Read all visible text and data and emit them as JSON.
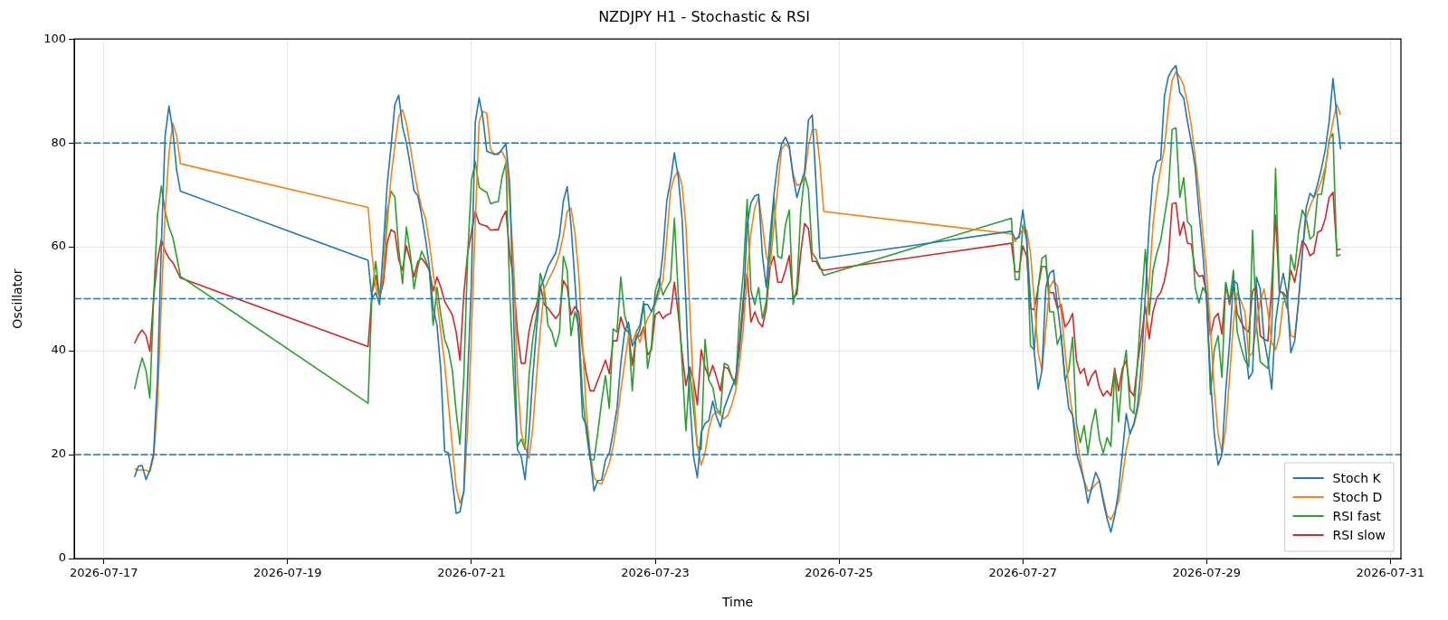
{
  "chart_data": {
    "type": "line",
    "title": "NZDJPY H1 - Stochastic & RSI",
    "xlabel": "Time",
    "ylabel": "Oscillator",
    "x": [
      "2026-07-17T08:00",
      "2026-07-17T09:00",
      "2026-07-17T10:00",
      "2026-07-17T11:00",
      "2026-07-17T12:00",
      "2026-07-17T13:00",
      "2026-07-17T14:00",
      "2026-07-17T15:00",
      "2026-07-17T16:00",
      "2026-07-17T17:00",
      "2026-07-17T18:00",
      "2026-07-17T19:00",
      "2026-07-17T20:00",
      "2026-07-19T21:00",
      "2026-07-19T22:00",
      "2026-07-19T23:00",
      "2026-07-20T00:00",
      "2026-07-20T01:00",
      "2026-07-20T02:00",
      "2026-07-20T03:00",
      "2026-07-20T04:00",
      "2026-07-20T05:00",
      "2026-07-20T06:00",
      "2026-07-20T07:00",
      "2026-07-20T08:00",
      "2026-07-20T09:00",
      "2026-07-20T10:00",
      "2026-07-20T11:00",
      "2026-07-20T12:00",
      "2026-07-20T13:00",
      "2026-07-20T14:00",
      "2026-07-20T15:00",
      "2026-07-20T16:00",
      "2026-07-20T17:00",
      "2026-07-20T18:00",
      "2026-07-20T19:00",
      "2026-07-20T20:00",
      "2026-07-20T21:00",
      "2026-07-20T22:00",
      "2026-07-20T23:00",
      "2026-07-21T00:00",
      "2026-07-21T01:00",
      "2026-07-21T02:00",
      "2026-07-21T03:00",
      "2026-07-21T04:00",
      "2026-07-21T05:00",
      "2026-07-21T06:00",
      "2026-07-21T07:00",
      "2026-07-21T08:00",
      "2026-07-21T09:00",
      "2026-07-21T10:00",
      "2026-07-21T11:00",
      "2026-07-21T12:00",
      "2026-07-21T13:00",
      "2026-07-21T14:00",
      "2026-07-21T15:00",
      "2026-07-21T16:00",
      "2026-07-21T17:00",
      "2026-07-21T18:00",
      "2026-07-21T19:00",
      "2026-07-21T20:00",
      "2026-07-21T21:00",
      "2026-07-21T22:00",
      "2026-07-21T23:00",
      "2026-07-22T00:00",
      "2026-07-22T01:00",
      "2026-07-22T02:00",
      "2026-07-22T03:00",
      "2026-07-22T04:00",
      "2026-07-22T05:00",
      "2026-07-22T06:00",
      "2026-07-22T07:00",
      "2026-07-22T08:00",
      "2026-07-22T09:00",
      "2026-07-22T10:00",
      "2026-07-22T11:00",
      "2026-07-22T12:00",
      "2026-07-22T13:00",
      "2026-07-22T14:00",
      "2026-07-22T15:00",
      "2026-07-22T16:00",
      "2026-07-22T17:00",
      "2026-07-22T18:00",
      "2026-07-22T19:00",
      "2026-07-22T20:00",
      "2026-07-22T21:00",
      "2026-07-22T22:00",
      "2026-07-22T23:00",
      "2026-07-23T00:00",
      "2026-07-23T01:00",
      "2026-07-23T02:00",
      "2026-07-23T03:00",
      "2026-07-23T04:00",
      "2026-07-23T05:00",
      "2026-07-23T06:00",
      "2026-07-23T07:00",
      "2026-07-23T08:00",
      "2026-07-23T09:00",
      "2026-07-23T10:00",
      "2026-07-23T11:00",
      "2026-07-23T12:00",
      "2026-07-23T13:00",
      "2026-07-23T14:00",
      "2026-07-23T15:00",
      "2026-07-23T16:00",
      "2026-07-23T17:00",
      "2026-07-23T18:00",
      "2026-07-23T19:00",
      "2026-07-23T20:00",
      "2026-07-23T21:00",
      "2026-07-23T22:00",
      "2026-07-23T23:00",
      "2026-07-24T00:00",
      "2026-07-24T01:00",
      "2026-07-24T02:00",
      "2026-07-24T03:00",
      "2026-07-24T04:00",
      "2026-07-24T05:00",
      "2026-07-24T06:00",
      "2026-07-24T07:00",
      "2026-07-24T08:00",
      "2026-07-24T09:00",
      "2026-07-24T10:00",
      "2026-07-24T11:00",
      "2026-07-24T12:00",
      "2026-07-24T13:00",
      "2026-07-24T14:00",
      "2026-07-24T15:00",
      "2026-07-24T16:00",
      "2026-07-24T17:00",
      "2026-07-24T18:00",
      "2026-07-24T19:00",
      "2026-07-24T20:00",
      "2026-07-26T21:00",
      "2026-07-26T22:00",
      "2026-07-26T23:00",
      "2026-07-27T00:00",
      "2026-07-27T01:00",
      "2026-07-27T02:00",
      "2026-07-27T03:00",
      "2026-07-27T04:00",
      "2026-07-27T05:00",
      "2026-07-27T06:00",
      "2026-07-27T07:00",
      "2026-07-27T08:00",
      "2026-07-27T09:00",
      "2026-07-27T10:00",
      "2026-07-27T11:00",
      "2026-07-27T12:00",
      "2026-07-27T13:00",
      "2026-07-27T14:00",
      "2026-07-27T15:00",
      "2026-07-27T16:00",
      "2026-07-27T17:00",
      "2026-07-27T18:00",
      "2026-07-27T19:00",
      "2026-07-27T20:00",
      "2026-07-27T21:00",
      "2026-07-27T22:00",
      "2026-07-27T23:00",
      "2026-07-28T00:00",
      "2026-07-28T01:00",
      "2026-07-28T02:00",
      "2026-07-28T03:00",
      "2026-07-28T04:00",
      "2026-07-28T05:00",
      "2026-07-28T06:00",
      "2026-07-28T07:00",
      "2026-07-28T08:00",
      "2026-07-28T09:00",
      "2026-07-28T10:00",
      "2026-07-28T11:00",
      "2026-07-28T12:00",
      "2026-07-28T13:00",
      "2026-07-28T14:00",
      "2026-07-28T15:00",
      "2026-07-28T16:00",
      "2026-07-28T17:00",
      "2026-07-28T18:00",
      "2026-07-28T19:00",
      "2026-07-28T20:00",
      "2026-07-28T21:00",
      "2026-07-28T22:00",
      "2026-07-28T23:00",
      "2026-07-29T00:00",
      "2026-07-29T01:00",
      "2026-07-29T02:00",
      "2026-07-29T03:00",
      "2026-07-29T04:00",
      "2026-07-29T05:00",
      "2026-07-29T06:00",
      "2026-07-29T07:00",
      "2026-07-29T08:00",
      "2026-07-29T09:00",
      "2026-07-29T10:00",
      "2026-07-29T11:00",
      "2026-07-29T12:00",
      "2026-07-29T13:00",
      "2026-07-29T14:00",
      "2026-07-29T15:00",
      "2026-07-29T16:00",
      "2026-07-29T17:00",
      "2026-07-29T18:00",
      "2026-07-29T19:00",
      "2026-07-29T20:00",
      "2026-07-29T21:00",
      "2026-07-29T22:00",
      "2026-07-29T23:00",
      "2026-07-30T00:00",
      "2026-07-30T01:00",
      "2026-07-30T02:00",
      "2026-07-30T03:00",
      "2026-07-30T04:00",
      "2026-07-30T05:00",
      "2026-07-30T06:00",
      "2026-07-30T07:00",
      "2026-07-30T08:00",
      "2026-07-30T09:00",
      "2026-07-30T10:00",
      "2026-07-30T11:00"
    ],
    "series": [
      {
        "name": "Stoch K",
        "color": "#1f77b4",
        "values": [
          15.7,
          17.8,
          17.9,
          15.2,
          17,
          20.3,
          34.9,
          60.2,
          81.4,
          87.1,
          82.4,
          74.8,
          70.7,
          57.4,
          50,
          51.2,
          48.9,
          60.2,
          72.1,
          79.4,
          87.4,
          89.2,
          83.1,
          80.1,
          75.8,
          70.8,
          69.8,
          66.1,
          61.5,
          56.2,
          48.2,
          44.9,
          36.2,
          20.6,
          20.3,
          15,
          8.7,
          9,
          13,
          34.9,
          53.5,
          84,
          88.7,
          84.8,
          78.4,
          78.1,
          77.8,
          77.8,
          78.8,
          79.8,
          72.1,
          46.9,
          21,
          19.6,
          15.2,
          23.6,
          34.9,
          44.2,
          52.2,
          53.9,
          56.2,
          57.5,
          58.8,
          62.2,
          68.8,
          71.6,
          64.2,
          53.5,
          42.9,
          27.3,
          25.6,
          19.6,
          13,
          15,
          15.1,
          19,
          20.3,
          24.3,
          28.9,
          37.6,
          43.6,
          45.5,
          40.9,
          42.2,
          44.2,
          48.9,
          48.9,
          47.5,
          49.5,
          52.2,
          58.8,
          68.8,
          72.8,
          78.1,
          73.5,
          65.5,
          49.5,
          30.9,
          19.6,
          15.6,
          24.3,
          26,
          26.6,
          30.3,
          27.3,
          25.3,
          28.9,
          30.9,
          32.9,
          34.9,
          40.2,
          48.2,
          64.2,
          68.5,
          69.8,
          70.1,
          58.2,
          52.2,
          62.2,
          70.1,
          76.1,
          79.8,
          81.1,
          79.4,
          73.5,
          69.5,
          72.1,
          74.5,
          84.4,
          85.4,
          72.1,
          57.8,
          57.8,
          63,
          61.5,
          61.8,
          67.1,
          61.5,
          49.5,
          39.6,
          32.6,
          36.2,
          52.2,
          54.9,
          55.5,
          48.9,
          42.9,
          34.9,
          28.9,
          27.6,
          20.3,
          17.6,
          15,
          10.7,
          13.7,
          16.6,
          15,
          11,
          7.7,
          5.1,
          8.3,
          13,
          20.3,
          27.9,
          24,
          26,
          29.6,
          37.6,
          50.9,
          64.2,
          73.5,
          76.4,
          76.8,
          89.1,
          92.7,
          94.1,
          94.9,
          89.7,
          88.7,
          84.1,
          80.1,
          75.4,
          66.8,
          58.8,
          49.5,
          34.9,
          24,
          18,
          20,
          32.3,
          41.6,
          53.5,
          52.9,
          46.9,
          41.6,
          34.6,
          35.9,
          54.2,
          51.9,
          42.2,
          38.2,
          32.6,
          45.5,
          50.9,
          54.9,
          50.9,
          39.6,
          41.9,
          49.5,
          58.8,
          67.5,
          70.3,
          69.5,
          72.1,
          75.1,
          78.8,
          84.1,
          92.4,
          85.4,
          78.8
        ]
      },
      {
        "name": "Stoch D",
        "color": "#ff7f0e",
        "values": [
          17.3,
          17,
          17.1,
          17,
          16.7,
          19.6,
          29.6,
          49.5,
          66.8,
          78.1,
          83.8,
          81.4,
          76,
          67.6,
          58.8,
          52.2,
          50.2,
          54.9,
          64.2,
          73.5,
          79.4,
          85.1,
          86.4,
          83.8,
          79.4,
          74.8,
          70.8,
          67.5,
          65.5,
          60.8,
          54.9,
          49.5,
          43.6,
          37.6,
          29.6,
          21.6,
          13.7,
          10.7,
          12.7,
          25,
          43.6,
          64.8,
          84.1,
          86.1,
          85.7,
          78.8,
          77.8,
          78.1,
          78.3,
          76.8,
          68.8,
          56.8,
          34.9,
          24.3,
          21.6,
          19.3,
          25,
          34.9,
          44.2,
          51.9,
          53.5,
          54.9,
          56.5,
          58.8,
          62.2,
          66.8,
          67.5,
          62.8,
          54.9,
          41.6,
          28.3,
          20.3,
          15.6,
          14.6,
          14.3,
          16.3,
          18.3,
          21.6,
          26.3,
          32.3,
          37.6,
          42.9,
          41.6,
          43.6,
          41.6,
          44.2,
          46.2,
          47.5,
          48.9,
          51.2,
          53.5,
          61.5,
          70.8,
          73.5,
          74.5,
          71.8,
          64.2,
          48.2,
          32.3,
          21.6,
          18,
          20.3,
          25,
          27.6,
          28.3,
          27.7,
          26.9,
          27.6,
          29.6,
          32.3,
          37.6,
          44.2,
          54.9,
          62.8,
          67.5,
          69.5,
          64.2,
          58.2,
          56.2,
          64.2,
          71.5,
          78.8,
          79.8,
          79.1,
          74.1,
          71.8,
          72.1,
          73.5,
          79.4,
          82.5,
          82.6,
          76.1,
          66.8,
          62.5,
          61,
          62.2,
          63.4,
          63.2,
          58.8,
          49.5,
          39.6,
          36.2,
          44.2,
          52.2,
          53.5,
          52.5,
          47.5,
          40.2,
          32.9,
          27.6,
          23.6,
          19,
          15,
          13,
          13.3,
          14.3,
          15,
          11.7,
          8.3,
          7.5,
          9,
          11,
          15.6,
          21,
          24.3,
          25.6,
          28.6,
          32.9,
          42.9,
          52.9,
          64.2,
          70.8,
          75.1,
          79.1,
          86.7,
          92.1,
          93.7,
          92.7,
          91.1,
          87.7,
          83.4,
          77.4,
          70.8,
          62.8,
          54.9,
          44.2,
          32.3,
          24,
          20.3,
          25,
          34.9,
          45.5,
          51.2,
          49.5,
          47.5,
          38.9,
          39.6,
          44.9,
          49.5,
          51.9,
          47.5,
          41.6,
          40.2,
          42.9,
          49.5,
          49.5,
          42.9,
          42.6,
          49.5,
          58.8,
          65.5,
          67.8,
          69.5,
          70.8,
          72.8,
          75.4,
          80.1,
          84.1,
          87.4,
          85.4
        ]
      },
      {
        "name": "RSI fast",
        "color": "#2ca02c",
        "values": [
          32.6,
          35.9,
          38.6,
          36.2,
          30.9,
          50.2,
          66.1,
          71.7,
          66.8,
          63.8,
          61.8,
          58.2,
          54.3,
          29.9,
          50.9,
          57.2,
          50.2,
          54.9,
          66.8,
          70.7,
          69.6,
          59.5,
          52.9,
          63.8,
          58.8,
          51.9,
          56.2,
          59.2,
          57.5,
          55.5,
          44.9,
          52.2,
          46.9,
          42.2,
          40.2,
          36.2,
          28.3,
          22,
          34.9,
          58.2,
          72.8,
          76.4,
          71.5,
          70.9,
          70.5,
          68.3,
          68.6,
          68.7,
          73.5,
          76.2,
          50.9,
          34.9,
          21.6,
          23,
          21,
          34.9,
          42.2,
          46.9,
          54.9,
          51.9,
          44.9,
          43.6,
          40.8,
          43.6,
          58.2,
          55.5,
          42.9,
          47.5,
          44.9,
          31.6,
          24.3,
          19,
          19,
          24.3,
          30.3,
          35.2,
          28.9,
          44.2,
          43.6,
          54.2,
          46.9,
          44.2,
          32.3,
          43.6,
          44.9,
          49.5,
          36.6,
          40.9,
          51.5,
          53.9,
          50.7,
          52.2,
          53.5,
          65.5,
          50.9,
          37.6,
          24.6,
          36.2,
          28.9,
          21.6,
          21,
          42.2,
          34.3,
          33,
          28.9,
          27.9,
          37.6,
          37.2,
          34.9,
          33.3,
          46.9,
          54.9,
          69.1,
          51.5,
          48.9,
          52.2,
          46.2,
          49.5,
          58.2,
          69.5,
          58.2,
          57.8,
          64.2,
          67.1,
          48.9,
          52.2,
          66.8,
          73.8,
          71.1,
          58.8,
          57.8,
          56.2,
          54.5,
          65.5,
          53.7,
          53.7,
          64.2,
          61.5,
          40.9,
          40.2,
          52.2,
          57.8,
          58.4,
          47.5,
          47.5,
          41.2,
          43.2,
          34.3,
          36.2,
          42.6,
          26,
          22.3,
          25.6,
          20.3,
          25.6,
          28.8,
          23,
          20.3,
          23.3,
          21.6,
          36.2,
          26.3,
          35.6,
          40.1,
          28.9,
          27.9,
          38.2,
          49.5,
          59.5,
          46.9,
          55.5,
          58.8,
          61.2,
          65.8,
          70.5,
          82.6,
          82.9,
          69.5,
          73.3,
          64.8,
          64,
          52.2,
          49.2,
          52.2,
          50.9,
          31.6,
          40.2,
          42.9,
          34.9,
          53.2,
          49.5,
          55.5,
          43.6,
          40.6,
          38.2,
          36.9,
          63.2,
          44.9,
          37.9,
          37.2,
          36.6,
          43.6,
          75.1,
          51.5,
          50.9,
          48.2,
          58.5,
          55.5,
          62.8,
          67.1,
          65.5,
          61.5,
          62.2,
          70.1,
          70.1,
          74.8,
          80.7,
          81.8,
          58.2,
          58.5
        ]
      },
      {
        "name": "RSI slow",
        "color": "#d62728",
        "values": [
          41.4,
          43,
          44,
          42.9,
          39.9,
          50.2,
          57.5,
          61.3,
          59.2,
          57.8,
          57,
          55.5,
          54,
          40.8,
          50.9,
          54.5,
          50.2,
          53.2,
          60.8,
          63.3,
          62.8,
          57.5,
          55.5,
          60.2,
          57.5,
          54.2,
          57.2,
          57.8,
          56.8,
          55.5,
          51.5,
          54.2,
          52.2,
          49.5,
          48.2,
          46.9,
          43.6,
          38.2,
          50.9,
          58.8,
          62.8,
          66.8,
          64.5,
          64.2,
          64,
          63.2,
          63.3,
          63.3,
          65.5,
          66.9,
          58.8,
          53.5,
          43.6,
          37.6,
          37.6,
          43.6,
          46.9,
          48.9,
          52.5,
          48.9,
          48.2,
          47.2,
          46.2,
          47.2,
          53.5,
          52.2,
          46.9,
          48.5,
          47.5,
          40.2,
          35.6,
          32.3,
          32.3,
          34.3,
          36.2,
          38.2,
          35.6,
          41.9,
          41.9,
          46.5,
          44.2,
          43.6,
          37.2,
          42.6,
          42.9,
          44.6,
          39.2,
          40.2,
          46.9,
          47.5,
          46.2,
          46.9,
          47.2,
          53.2,
          47.2,
          39.6,
          33.3,
          36.9,
          34.3,
          29.6,
          40.2,
          36.9,
          34.9,
          37.2,
          34.9,
          32.3,
          36.9,
          36.6,
          34.9,
          33.6,
          41.6,
          50.2,
          54.9,
          45.5,
          47.5,
          45.5,
          44.6,
          48.2,
          56.2,
          58.2,
          53.2,
          53.2,
          55.5,
          58.3,
          50.2,
          50.9,
          58.8,
          64.5,
          63.5,
          57.2,
          57.2,
          55.8,
          55.5,
          60.7,
          55.2,
          55.2,
          60.2,
          58.2,
          48.2,
          47.9,
          52.2,
          56.2,
          56.2,
          51.2,
          51.2,
          48.2,
          48.9,
          44.6,
          45.5,
          47.2,
          38.2,
          35.6,
          36.6,
          33.3,
          35.2,
          36.2,
          32.9,
          31.3,
          32.3,
          31.3,
          36.6,
          32.3,
          36.6,
          38.1,
          32.3,
          31.3,
          37.6,
          42.9,
          48.5,
          42.3,
          47.5,
          50.2,
          51.2,
          53.5,
          57.5,
          68.3,
          68.5,
          62.2,
          64.8,
          60.7,
          60.5,
          55.5,
          54.3,
          54.5,
          50.9,
          42.9,
          46.3,
          47.2,
          43.2,
          52.9,
          48.9,
          52.9,
          47.2,
          45.5,
          44.2,
          43.6,
          51.5,
          52.5,
          42.9,
          42.2,
          41.9,
          52.5,
          66.1,
          51.4,
          51.2,
          50.2,
          55.5,
          53.2,
          57.2,
          61.2,
          60.2,
          58.3,
          58.8,
          62.8,
          63.2,
          65.5,
          69.5,
          70.5,
          59.4,
          59.6
        ]
      }
    ],
    "xlim": [
      "2026-07-16T16:15",
      "2026-07-31T02:45"
    ],
    "xticks": [
      "2026-07-17",
      "2026-07-19",
      "2026-07-21",
      "2026-07-23",
      "2026-07-25",
      "2026-07-27",
      "2026-07-29",
      "2026-07-31"
    ],
    "ylim": [
      0,
      100
    ],
    "yticks": [
      0,
      20,
      40,
      60,
      80,
      100
    ],
    "ref_lines": [
      {
        "axis": "y",
        "value": 80,
        "color": "#1f76b4",
        "line_style": "dashed"
      },
      {
        "axis": "y",
        "value": 50,
        "color": "#1f77b5",
        "line_style": "dashed"
      },
      {
        "axis": "y",
        "value": 20,
        "color": "#1e77b4",
        "line_style": "dashed"
      }
    ],
    "grid": true,
    "legend": "bottom right",
    "marker": "none",
    "line_style": "solid"
  }
}
